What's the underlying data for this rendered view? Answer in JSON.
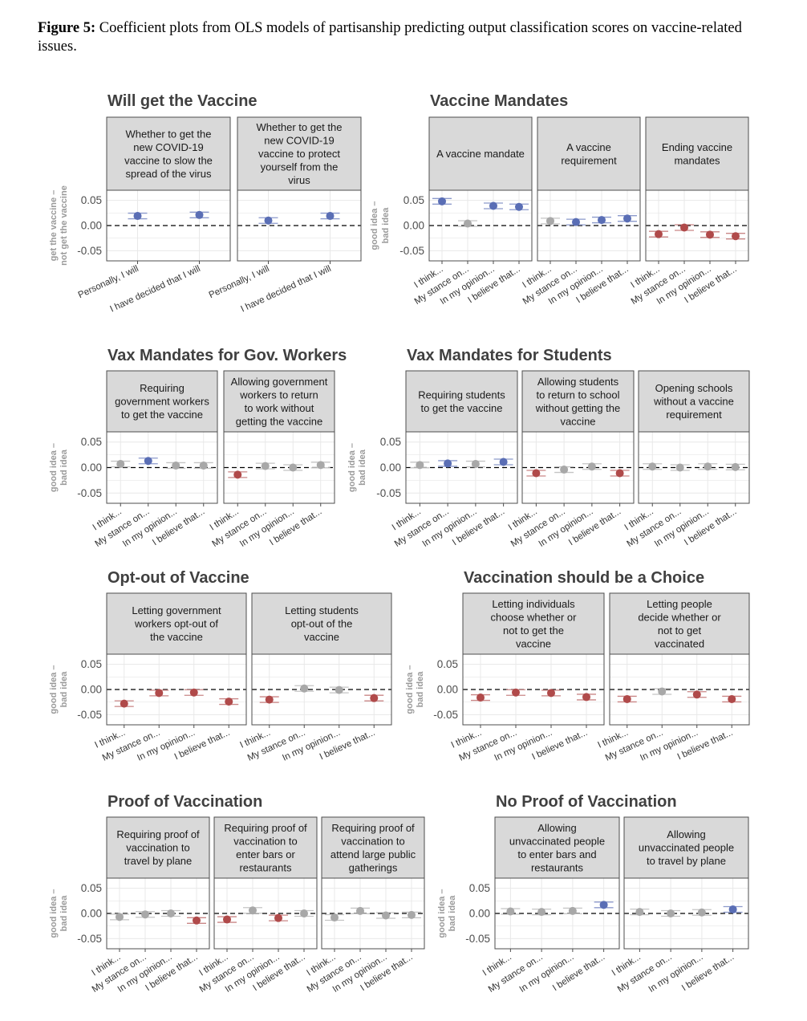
{
  "caption": {
    "label": "Figure 5:",
    "text": "Coefficient plots from OLS models of partisanship predicting output classification scores on vaccine-related issues."
  },
  "colors": {
    "democrat": "#5a6eb5",
    "republican": "#b04a4a",
    "neutral": "#a8a8a8",
    "strip": "#d9d9d9",
    "grid": "#e8e8e8"
  },
  "chart_data": [
    {
      "type": "scatter",
      "title": "Will get the Vaccine",
      "ylabel": [
        "get the vaccine –",
        "not get the vaccine"
      ],
      "ylim": [
        -0.07,
        0.07
      ],
      "yticks": [
        "0.05",
        "0.00",
        "-0.05"
      ],
      "categories": [
        "Personally, I will",
        "I have decided that I will"
      ],
      "panels": [
        {
          "strip": [
            "Whether to get the",
            "new COVID-19",
            "vaccine to slow the",
            "spread of the virus"
          ],
          "values": [
            0.019,
            0.021
          ],
          "colors": [
            "democrat",
            "democrat"
          ]
        },
        {
          "strip": [
            "Whether to get the",
            "new COVID-19",
            "vaccine to protect",
            "yourself from the",
            "virus"
          ],
          "values": [
            0.01,
            0.019
          ],
          "colors": [
            "democrat",
            "democrat"
          ]
        }
      ]
    },
    {
      "type": "scatter",
      "title": "Vaccine Mandates",
      "ylabel": [
        "good idea –",
        "bad idea"
      ],
      "ylim": [
        -0.07,
        0.07
      ],
      "yticks": [
        "0.05",
        "0.00",
        "-0.05"
      ],
      "categories": [
        "I think...",
        "My stance on...",
        "In my opinion...",
        "I believe that..."
      ],
      "panels": [
        {
          "strip": [
            "A vaccine mandate"
          ],
          "values": [
            0.048,
            0.004,
            0.039,
            0.037
          ],
          "colors": [
            "democrat",
            "neutral",
            "democrat",
            "democrat"
          ]
        },
        {
          "strip": [
            "A vaccine",
            "requirement"
          ],
          "values": [
            0.009,
            0.007,
            0.011,
            0.014
          ],
          "colors": [
            "neutral",
            "democrat",
            "democrat",
            "democrat"
          ]
        },
        {
          "strip": [
            "Ending vaccine",
            "mandates"
          ],
          "values": [
            -0.017,
            -0.004,
            -0.018,
            -0.021
          ],
          "colors": [
            "republican",
            "republican",
            "republican",
            "republican"
          ]
        }
      ]
    },
    {
      "type": "scatter",
      "title": "Vax Mandates for Gov. Workers",
      "ylabel": [
        "good idea –",
        "bad idea"
      ],
      "ylim": [
        -0.07,
        0.07
      ],
      "yticks": [
        "0.05",
        "0.00",
        "-0.05"
      ],
      "categories": [
        "I think...",
        "My stance on...",
        "In my opinion...",
        "I believe that..."
      ],
      "panels": [
        {
          "strip": [
            "Requiring",
            "government workers",
            "to get the vaccine"
          ],
          "values": [
            0.007,
            0.013,
            0.004,
            0.004
          ],
          "colors": [
            "neutral",
            "democrat",
            "neutral",
            "neutral"
          ]
        },
        {
          "strip": [
            "Allowing government",
            "workers to return",
            "to work without",
            "getting the vaccine"
          ],
          "values": [
            -0.014,
            0.003,
            0.0,
            0.005
          ],
          "colors": [
            "republican",
            "neutral",
            "neutral",
            "neutral"
          ]
        }
      ]
    },
    {
      "type": "scatter",
      "title": "Vax Mandates for Students",
      "ylabel": [
        "good idea –",
        "bad idea"
      ],
      "ylim": [
        -0.07,
        0.07
      ],
      "yticks": [
        "0.05",
        "0.00",
        "-0.05"
      ],
      "categories": [
        "I think...",
        "My stance on...",
        "In my opinion...",
        "I believe that..."
      ],
      "panels": [
        {
          "strip": [
            "Requiring students",
            "to get the vaccine"
          ],
          "values": [
            0.005,
            0.008,
            0.007,
            0.011
          ],
          "colors": [
            "neutral",
            "democrat",
            "neutral",
            "democrat"
          ]
        },
        {
          "strip": [
            "Allowing students",
            "to return to school",
            "without getting the",
            "vaccine"
          ],
          "values": [
            -0.011,
            -0.004,
            0.002,
            -0.011
          ],
          "colors": [
            "republican",
            "neutral",
            "neutral",
            "republican"
          ]
        },
        {
          "strip": [
            "Opening schools",
            "without a vaccine",
            "requirement"
          ],
          "values": [
            0.002,
            0.0,
            0.002,
            0.001
          ],
          "colors": [
            "neutral",
            "neutral",
            "neutral",
            "neutral"
          ]
        }
      ]
    },
    {
      "type": "scatter",
      "title": "Opt-out of Vaccine",
      "ylabel": [
        "good idea –",
        "bad idea"
      ],
      "ylim": [
        -0.07,
        0.07
      ],
      "yticks": [
        "0.05",
        "0.00",
        "-0.05"
      ],
      "categories": [
        "I think...",
        "My stance on...",
        "In my opinion...",
        "I believe that..."
      ],
      "panels": [
        {
          "strip": [
            "Letting government",
            "workers opt-out of",
            "the vaccine"
          ],
          "values": [
            -0.028,
            -0.007,
            -0.006,
            -0.024
          ],
          "colors": [
            "republican",
            "republican",
            "republican",
            "republican"
          ]
        },
        {
          "strip": [
            "Letting students",
            "opt-out of the",
            "vaccine"
          ],
          "values": [
            -0.02,
            0.002,
            -0.001,
            -0.017
          ],
          "colors": [
            "republican",
            "neutral",
            "neutral",
            "republican"
          ]
        }
      ]
    },
    {
      "type": "scatter",
      "title": "Vaccination should be a Choice",
      "ylabel": [
        "good idea –",
        "bad idea"
      ],
      "ylim": [
        -0.07,
        0.07
      ],
      "yticks": [
        "0.05",
        "0.00",
        "-0.05"
      ],
      "categories": [
        "I think...",
        "My stance on...",
        "In my opinion...",
        "I believe that..."
      ],
      "panels": [
        {
          "strip": [
            "Letting individuals",
            "choose whether or",
            "not to get the",
            "vaccine"
          ],
          "values": [
            -0.016,
            -0.006,
            -0.007,
            -0.015
          ],
          "colors": [
            "republican",
            "republican",
            "republican",
            "republican"
          ]
        },
        {
          "strip": [
            "Letting people",
            "decide whether or",
            "not to get",
            "vaccinated"
          ],
          "values": [
            -0.019,
            -0.004,
            -0.01,
            -0.019
          ],
          "colors": [
            "republican",
            "neutral",
            "republican",
            "republican"
          ]
        }
      ]
    },
    {
      "type": "scatter",
      "title": "Proof of Vaccination",
      "ylabel": [
        "good idea –",
        "bad idea"
      ],
      "ylim": [
        -0.07,
        0.07
      ],
      "yticks": [
        "0.05",
        "0.00",
        "-0.05"
      ],
      "categories": [
        "I think...",
        "My stance on...",
        "In my opinion...",
        "I believe that..."
      ],
      "panels": [
        {
          "strip": [
            "Requiring proof of",
            "vaccination to",
            "travel by plane"
          ],
          "values": [
            -0.007,
            -0.002,
            0.0,
            -0.014
          ],
          "colors": [
            "neutral",
            "neutral",
            "neutral",
            "republican"
          ]
        },
        {
          "strip": [
            "Requiring proof of",
            "vaccination to",
            "enter bars or",
            "restaurants"
          ],
          "values": [
            -0.012,
            0.006,
            -0.009,
            0.0
          ],
          "colors": [
            "republican",
            "neutral",
            "republican",
            "neutral"
          ]
        },
        {
          "strip": [
            "Requiring proof of",
            "vaccination to",
            "attend large public",
            "gatherings"
          ],
          "values": [
            -0.008,
            0.005,
            -0.004,
            -0.003
          ],
          "colors": [
            "neutral",
            "neutral",
            "neutral",
            "neutral"
          ]
        }
      ]
    },
    {
      "type": "scatter",
      "title": "No Proof of Vaccination",
      "ylabel": [
        "good idea –",
        "bad idea"
      ],
      "ylim": [
        -0.07,
        0.07
      ],
      "yticks": [
        "0.05",
        "0.00",
        "-0.05"
      ],
      "categories": [
        "I think...",
        "My stance on...",
        "In my opinion...",
        "I believe that..."
      ],
      "panels": [
        {
          "strip": [
            "Allowing",
            "unvaccinated people",
            "to enter bars and",
            "restaurants"
          ],
          "values": [
            0.004,
            0.003,
            0.005,
            0.017
          ],
          "colors": [
            "neutral",
            "neutral",
            "neutral",
            "democrat"
          ]
        },
        {
          "strip": [
            "Allowing",
            "unvaccinated people",
            "to travel by plane"
          ],
          "values": [
            0.003,
            0.0,
            0.002,
            0.008
          ],
          "colors": [
            "neutral",
            "neutral",
            "neutral",
            "democrat"
          ]
        }
      ]
    }
  ]
}
